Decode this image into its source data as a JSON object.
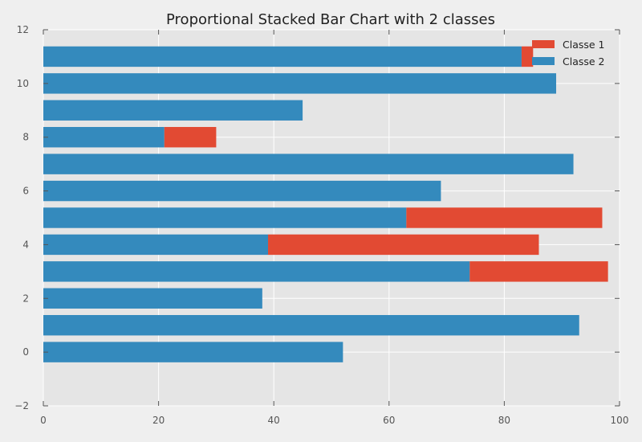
{
  "chart_data": {
    "type": "bar",
    "orientation": "horizontal",
    "stacked": true,
    "title": "Proportional Stacked Bar Chart with 2 classes",
    "xlabel": "",
    "ylabel": "",
    "xlim": [
      0,
      100
    ],
    "ylim": [
      -2,
      12
    ],
    "xticks": [
      0,
      20,
      40,
      60,
      80,
      100
    ],
    "yticks": [
      -2,
      0,
      2,
      4,
      6,
      8,
      10,
      12
    ],
    "grid": true,
    "legend_position": "top-right",
    "categories": [
      0,
      1,
      2,
      3,
      4,
      5,
      6,
      7,
      8,
      9,
      10,
      11
    ],
    "series": [
      {
        "name": "Classe 2",
        "color": "#348abd",
        "values": [
          52,
          93,
          38,
          74,
          39,
          63,
          69,
          92,
          21,
          45,
          89,
          83
        ]
      },
      {
        "name": "Classe 1",
        "color": "#e24a33",
        "values": [
          0,
          0,
          0,
          24,
          47,
          34,
          0,
          0,
          9,
          0,
          0,
          2
        ]
      }
    ],
    "legend": [
      "Classe 1",
      "Classe 2"
    ]
  }
}
